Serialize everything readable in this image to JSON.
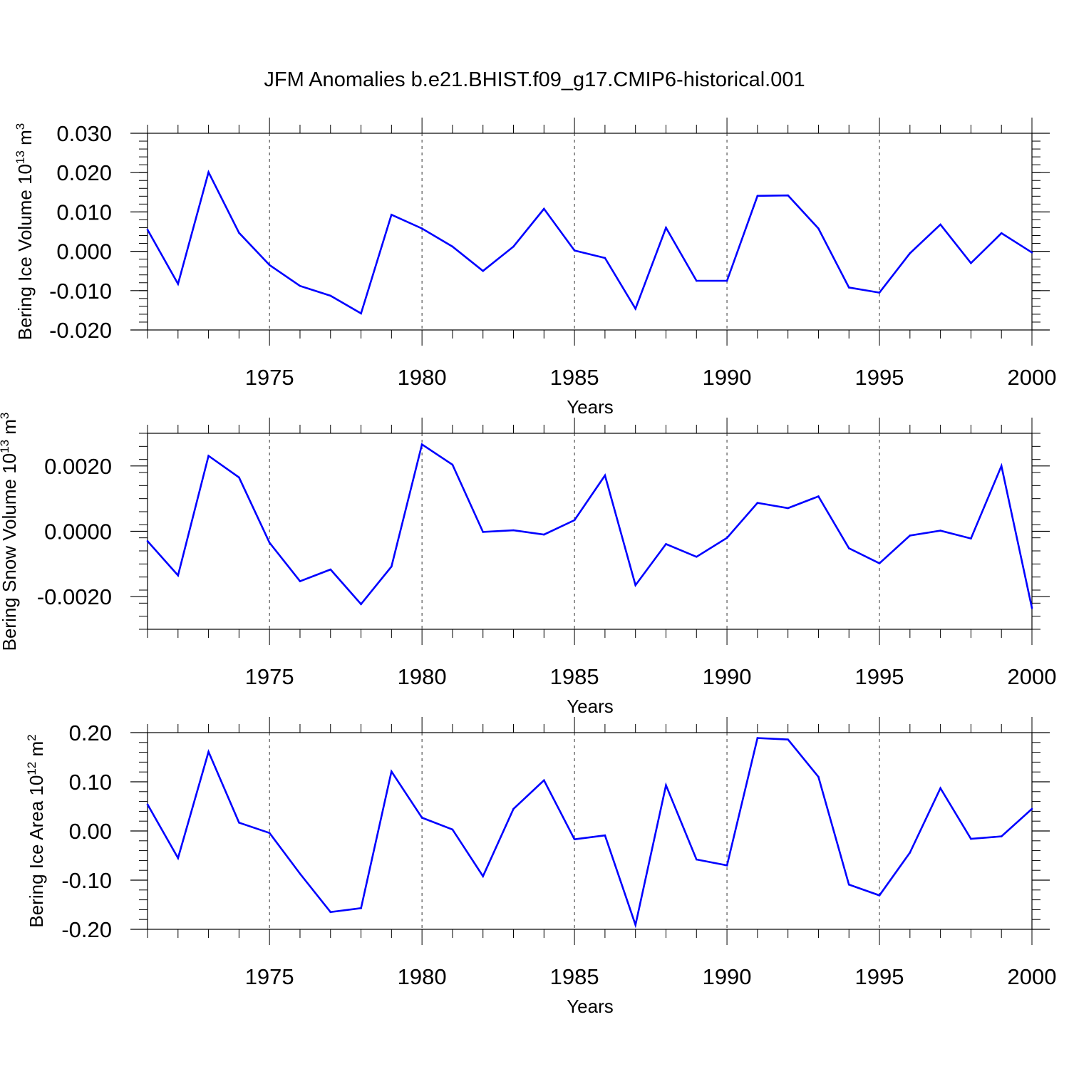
{
  "title": "JFM Anomalies b.e21.BHIST.f09_g17.CMIP6-historical.001",
  "line_color": "#0000ff",
  "chart_data": [
    {
      "type": "line",
      "title": "JFM Anomalies b.e21.BHIST.f09_g17.CMIP6-historical.001",
      "xlabel": "Years",
      "ylabel_main": "Bering Ice Volume 10",
      "ylabel_sup": "13",
      "ylabel_unit": " m",
      "ylabel_unit_sup": "3",
      "xlim": [
        1971,
        2000
      ],
      "ylim": [
        -0.02,
        0.03
      ],
      "yticks": [
        -0.02,
        -0.01,
        0.0,
        0.01,
        0.02,
        0.03
      ],
      "ytick_labels": [
        "-0.020",
        "-0.010",
        "0.000",
        "0.010",
        "0.020",
        "0.030"
      ],
      "xticks": [
        1975,
        1980,
        1985,
        1990,
        1995,
        2000
      ],
      "xtick_labels": [
        "1975",
        "1980",
        "1985",
        "1990",
        "1995",
        "2000"
      ],
      "grid": "vertical dashed at major x ticks",
      "x": [
        1971,
        1972,
        1973,
        1974,
        1975,
        1976,
        1977,
        1978,
        1979,
        1980,
        1981,
        1982,
        1983,
        1984,
        1985,
        1986,
        1987,
        1988,
        1989,
        1990,
        1991,
        1992,
        1993,
        1994,
        1995,
        1996,
        1997,
        1998,
        1999,
        2000
      ],
      "values": [
        0.0055,
        -0.0083,
        0.0201,
        0.0047,
        -0.0035,
        -0.0088,
        -0.0113,
        -0.0158,
        0.0093,
        0.0058,
        0.0012,
        -0.005,
        0.0012,
        0.0108,
        0.0002,
        -0.0017,
        -0.0146,
        0.006,
        -0.0075,
        -0.0075,
        0.0141,
        0.0142,
        0.0058,
        -0.0092,
        -0.0105,
        -0.0005,
        0.0068,
        -0.003,
        0.0046,
        -0.0003
      ]
    },
    {
      "type": "line",
      "xlabel": "Years",
      "ylabel_main": "Bering Snow Volume 10",
      "ylabel_sup": "13",
      "ylabel_unit": " m",
      "ylabel_unit_sup": "3",
      "xlim": [
        1971,
        2000
      ],
      "ylim": [
        -0.003,
        0.003
      ],
      "yticks": [
        -0.002,
        0.0,
        0.002
      ],
      "ytick_labels": [
        "-0.0020",
        "0.0000",
        "0.0020"
      ],
      "xticks": [
        1975,
        1980,
        1985,
        1990,
        1995,
        2000
      ],
      "xtick_labels": [
        "1975",
        "1980",
        "1985",
        "1990",
        "1995",
        "2000"
      ],
      "grid": "vertical dashed at major x ticks",
      "x": [
        1971,
        1972,
        1973,
        1974,
        1975,
        1976,
        1977,
        1978,
        1979,
        1980,
        1981,
        1982,
        1983,
        1984,
        1985,
        1986,
        1987,
        1988,
        1989,
        1990,
        1991,
        1992,
        1993,
        1994,
        1995,
        1996,
        1997,
        1998,
        1999,
        2000
      ],
      "values": [
        -0.0003,
        -0.00135,
        0.00231,
        0.00165,
        -0.00035,
        -0.00153,
        -0.00117,
        -0.00223,
        -0.00108,
        0.00266,
        0.00204,
        -2e-05,
        3e-05,
        -0.0001,
        0.00034,
        0.00171,
        -0.00165,
        -0.00039,
        -0.00078,
        -0.0002,
        0.00087,
        0.00071,
        0.00107,
        -0.00052,
        -0.00098,
        -0.00013,
        2e-05,
        -0.00022,
        0.002,
        -0.00235
      ]
    },
    {
      "type": "line",
      "xlabel": "Years",
      "ylabel_main": "Bering Ice Area 10",
      "ylabel_sup": "12",
      "ylabel_unit": " m",
      "ylabel_unit_sup": "2",
      "xlim": [
        1971,
        2000
      ],
      "ylim": [
        -0.2,
        0.2
      ],
      "yticks": [
        -0.2,
        -0.1,
        0.0,
        0.1,
        0.2
      ],
      "ytick_labels": [
        "-0.20",
        "-0.10",
        "0.00",
        "0.10",
        "0.20"
      ],
      "xticks": [
        1975,
        1980,
        1985,
        1990,
        1995,
        2000
      ],
      "xtick_labels": [
        "1975",
        "1980",
        "1985",
        "1990",
        "1995",
        "2000"
      ],
      "grid": "vertical dashed at major x ticks",
      "x": [
        1971,
        1972,
        1973,
        1974,
        1975,
        1976,
        1977,
        1978,
        1979,
        1980,
        1981,
        1982,
        1983,
        1984,
        1985,
        1986,
        1987,
        1988,
        1989,
        1990,
        1991,
        1992,
        1993,
        1994,
        1995,
        1996,
        1997,
        1998,
        1999,
        2000
      ],
      "values": [
        0.054,
        -0.055,
        0.161,
        0.017,
        -0.004,
        -0.087,
        -0.165,
        -0.157,
        0.121,
        0.027,
        0.003,
        -0.092,
        0.045,
        0.103,
        -0.017,
        -0.009,
        -0.191,
        0.093,
        -0.058,
        -0.07,
        0.189,
        0.186,
        0.11,
        -0.109,
        -0.131,
        -0.044,
        0.087,
        -0.016,
        -0.011,
        0.045
      ]
    }
  ]
}
